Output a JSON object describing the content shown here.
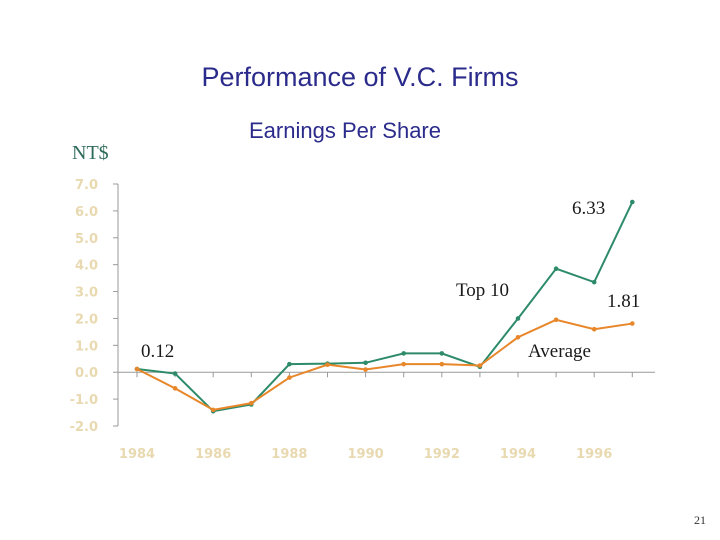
{
  "page": {
    "page_number": "21"
  },
  "chart_data": {
    "type": "line",
    "title": "Performance of V.C. Firms",
    "subtitle": "Earnings Per Share",
    "ylabel": "NT$",
    "xlabel": "",
    "ylim": [
      -2.0,
      7.0
    ],
    "yticks": [
      "7.0",
      "6.0",
      "5.0",
      "4.0",
      "3.0",
      "2.0",
      "1.0",
      "0.0",
      "-1.0",
      "-2.0"
    ],
    "xticks": [
      "1984",
      "1986",
      "1988",
      "1990",
      "1992",
      "1994",
      "1996"
    ],
    "x": [
      1984,
      1985,
      1986,
      1987,
      1988,
      1989,
      1990,
      1991,
      1992,
      1993,
      1994,
      1995,
      1996,
      1997
    ],
    "grid": false,
    "colors": {
      "top10": "#2e8b6a",
      "average": "#e8862a"
    },
    "series": [
      {
        "name": "Top 10",
        "values": [
          0.12,
          -0.05,
          -1.45,
          -1.2,
          0.3,
          0.32,
          0.35,
          0.7,
          0.7,
          0.2,
          2.0,
          3.85,
          3.35,
          6.33
        ]
      },
      {
        "name": "Average",
        "values": [
          0.12,
          -0.6,
          -1.4,
          -1.15,
          -0.2,
          0.28,
          0.1,
          0.3,
          0.3,
          0.25,
          1.3,
          1.95,
          1.6,
          1.81
        ]
      }
    ],
    "annotations": [
      {
        "text": "6.33",
        "series": "Top 10",
        "x": 1997
      },
      {
        "text": "Top 10",
        "series": "Top 10"
      },
      {
        "text": "1.81",
        "series": "Average",
        "x": 1997
      },
      {
        "text": "Average",
        "series": "Average"
      },
      {
        "text": "0.12",
        "series": "Top 10",
        "x": 1984
      }
    ]
  }
}
